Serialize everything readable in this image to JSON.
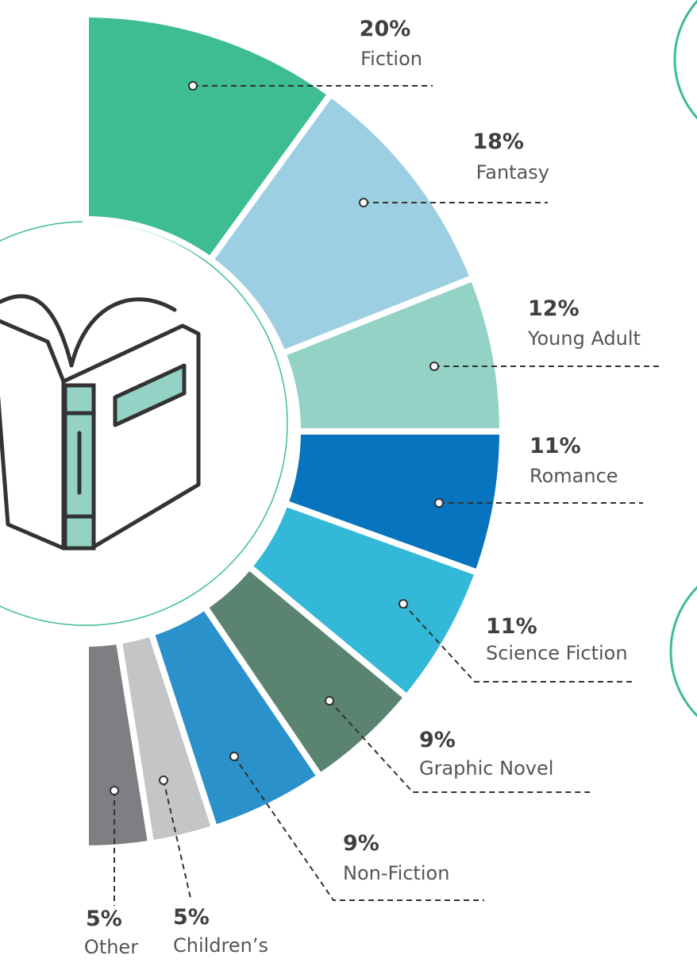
{
  "chart_data": {
    "type": "half-donut",
    "categories": [
      "Fiction",
      "Fantasy",
      "Young Adult",
      "Romance",
      "Science Fiction",
      "Graphic Novel",
      "Non-Fiction",
      "Children’s",
      "Other"
    ],
    "values": [
      20,
      18,
      12,
      11,
      11,
      9,
      9,
      5,
      5
    ],
    "value_labels": [
      "20%",
      "18%",
      "12%",
      "11%",
      "11%",
      "9%",
      "9%",
      "5%",
      "5%"
    ],
    "colors": [
      "#3dbd91",
      "#9ccfe2",
      "#93d2c5",
      "#0674bf",
      "#33b8d8",
      "#5a8470",
      "#2a91cb",
      "#c4c5c7",
      "#7e7f83"
    ]
  }
}
